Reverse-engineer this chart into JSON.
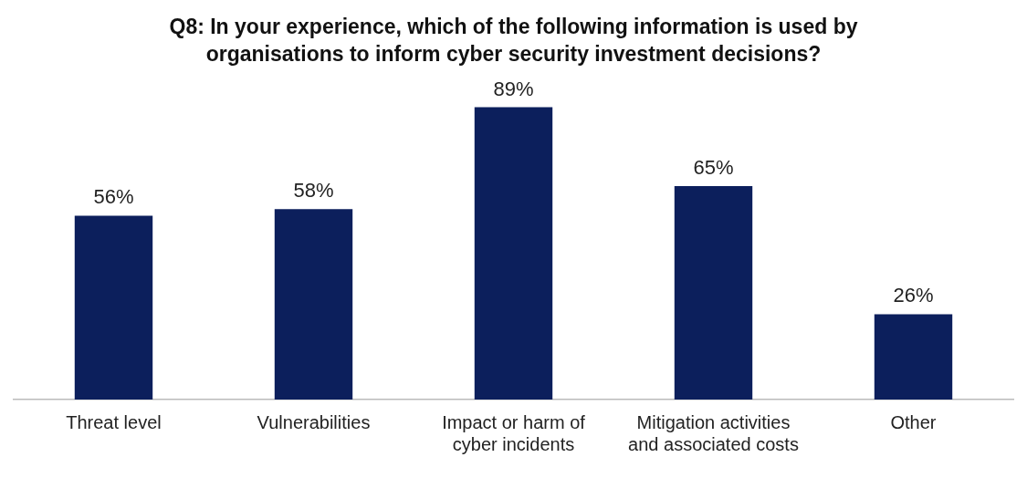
{
  "chart_data": {
    "type": "bar",
    "title": "Q8: In your experience, which of the following information is used by organisations to inform cyber security investment decisions?",
    "categories": [
      "Threat level",
      "Vulnerabilities",
      "Impact or harm of cyber incidents",
      "Mitigation activities and associated costs",
      "Other"
    ],
    "values": [
      56,
      58,
      89,
      65,
      26
    ],
    "value_labels": [
      "56%",
      "58%",
      "89%",
      "65%",
      "26%"
    ],
    "color": "#0c1f5c",
    "legend": false
  }
}
